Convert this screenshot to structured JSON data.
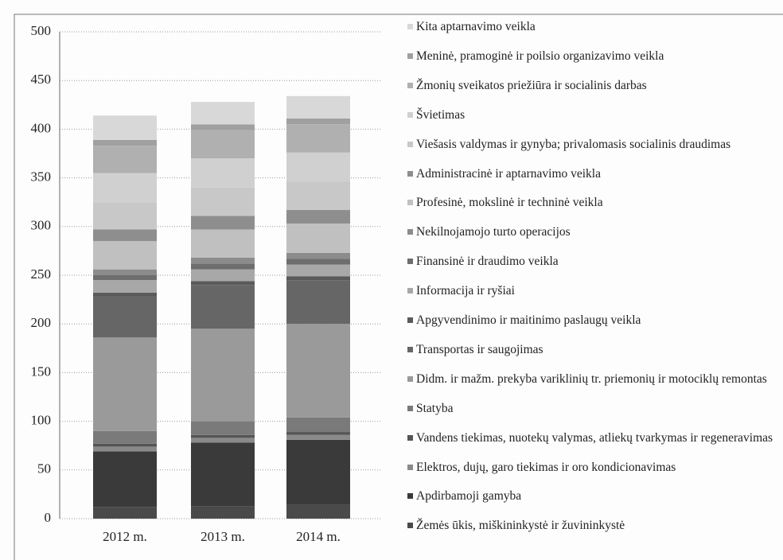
{
  "chart_data": {
    "type": "bar",
    "stacked": true,
    "categories": [
      "2012 m.",
      "2013 m.",
      "2014 m."
    ],
    "ylim": [
      0,
      500
    ],
    "yticks": [
      0,
      50,
      100,
      150,
      200,
      250,
      300,
      350,
      400,
      450,
      500
    ],
    "grid": true,
    "series": [
      {
        "name": "Žemės ūkis, miškininkystė ir žuvininkystė",
        "color": "#4a4a4a",
        "values": [
          12,
          13,
          14
        ]
      },
      {
        "name": "Apdirbamoji gamyba",
        "color": "#3a3a3a",
        "values": [
          57,
          65,
          67
        ]
      },
      {
        "name": "Elektros, dujų, garo tiekimas ir oro kondicionavimas",
        "color": "#8a8a8a",
        "values": [
          5,
          5,
          5
        ]
      },
      {
        "name": "Vandens tiekimas, nuotekų valymas, atliekų tvarkymas ir regeneravimas",
        "color": "#555555",
        "values": [
          3,
          3,
          3
        ]
      },
      {
        "name": "Statyba",
        "color": "#7a7a7a",
        "values": [
          13,
          14,
          15
        ]
      },
      {
        "name": "Didm. ir mažm. prekyba variklinių tr. priemonių ir motociklų remontas",
        "color": "#9a9a9a",
        "values": [
          96,
          95,
          96
        ]
      },
      {
        "name": "Transportas ir saugojimas",
        "color": "#666666",
        "values": [
          42,
          45,
          45
        ]
      },
      {
        "name": "Apgyvendinimo ir maitinimo paslaugų veikla",
        "color": "#5a5a5a",
        "values": [
          4,
          4,
          4
        ]
      },
      {
        "name": "Informacija ir ryšiai",
        "color": "#a8a8a8",
        "values": [
          13,
          12,
          12
        ]
      },
      {
        "name": "Finansinė ir draudimo veikla",
        "color": "#6e6e6e",
        "values": [
          5,
          6,
          6
        ]
      },
      {
        "name": "Nekilnojamojo turto operacijos",
        "color": "#8c8c8c",
        "values": [
          6,
          6,
          6
        ]
      },
      {
        "name": "Profesinė, mokslinė ir techninė veikla",
        "color": "#c0c0c0",
        "values": [
          29,
          29,
          30
        ]
      },
      {
        "name": "Administracinė ir aptarnavimo veikla",
        "color": "#8e8e8e",
        "values": [
          12,
          14,
          14
        ]
      },
      {
        "name": "Viešasis valdymas ir gynyba; privalomasis socialinis draudimas",
        "color": "#c8c8c8",
        "values": [
          28,
          29,
          29
        ]
      },
      {
        "name": "Švietimas",
        "color": "#d0d0d0",
        "values": [
          30,
          30,
          30
        ]
      },
      {
        "name": "Žmonių sveikatos priežiūra ir socialinis darbas",
        "color": "#b0b0b0",
        "values": [
          28,
          29,
          29
        ]
      },
      {
        "name": "Meninė, pramoginė ir poilsio organizavimo veikla",
        "color": "#a0a0a0",
        "values": [
          6,
          6,
          6
        ]
      },
      {
        "name": "Kita aptarnavimo veikla",
        "color": "#d8d8d8",
        "values": [
          25,
          23,
          23
        ]
      }
    ]
  }
}
